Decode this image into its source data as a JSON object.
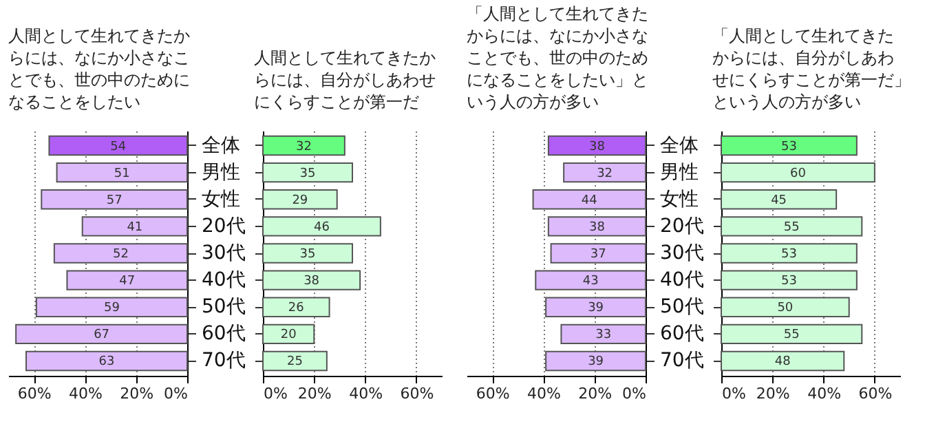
{
  "chart_data": [
    {
      "type": "bar",
      "orientation": "horizontal",
      "title": "人間として生れてきたからには、なにか小さなことでも、世の中のためになることをしたい",
      "categories": [
        "全体",
        "男性",
        "女性",
        "20代",
        "30代",
        "40代",
        "50代",
        "60代",
        "70代"
      ],
      "values": [
        54,
        51,
        57,
        41,
        52,
        47,
        59,
        67,
        63
      ],
      "colors": [
        "#b15ef7",
        "#dcbafc",
        "#dcbafc",
        "#dcbafc",
        "#dcbafc",
        "#dcbafc",
        "#dcbafc",
        "#dcbafc",
        "#dcbafc"
      ],
      "data_labels": true,
      "xlim": [
        70,
        0
      ],
      "xticks": [
        {
          "value": 60,
          "label": "60%"
        },
        {
          "value": 40,
          "label": "40%"
        },
        {
          "value": 20,
          "label": "20%"
        },
        {
          "value": 0,
          "label": "0%"
        }
      ],
      "grid": "x"
    },
    {
      "type": "bar",
      "orientation": "horizontal",
      "title": "人間として生れてきたからには、自分がしあわせにくらすことが第一だ",
      "categories": [
        "全体",
        "男性",
        "女性",
        "20代",
        "30代",
        "40代",
        "50代",
        "60代",
        "70代"
      ],
      "values": [
        32,
        35,
        29,
        46,
        35,
        38,
        26,
        20,
        25
      ],
      "colors": [
        "#66fc80",
        "#ccfcd8",
        "#ccfcd8",
        "#ccfcd8",
        "#ccfcd8",
        "#ccfcd8",
        "#ccfcd8",
        "#ccfcd8",
        "#ccfcd8"
      ],
      "data_labels": true,
      "xlim": [
        0,
        70
      ],
      "xticks": [
        {
          "value": 0,
          "label": "0%"
        },
        {
          "value": 20,
          "label": "20%"
        },
        {
          "value": 40,
          "label": "40%"
        },
        {
          "value": 60,
          "label": "60%"
        }
      ],
      "grid": "x",
      "tick_labels": "x"
    },
    {
      "type": "bar",
      "orientation": "horizontal",
      "title": "「人間として生れてきたからには、なにか小さなことでも、世の中のためになることをしたい」という人の方が多い",
      "categories": [
        "全体",
        "男性",
        "女性",
        "20代",
        "30代",
        "40代",
        "50代",
        "60代",
        "70代"
      ],
      "values": [
        38,
        32,
        44,
        38,
        37,
        43,
        39,
        33,
        39
      ],
      "colors": [
        "#b15ef7",
        "#dcbafc",
        "#dcbafc",
        "#dcbafc",
        "#dcbafc",
        "#dcbafc",
        "#dcbafc",
        "#dcbafc",
        "#dcbafc"
      ],
      "data_labels": true,
      "xlim": [
        70,
        0
      ],
      "xticks": [
        {
          "value": 60,
          "label": "60%"
        },
        {
          "value": 40,
          "label": "40%"
        },
        {
          "value": 20,
          "label": "20%"
        },
        {
          "value": 0,
          "label": "0%"
        }
      ],
      "grid": "x"
    },
    {
      "type": "bar",
      "orientation": "horizontal",
      "title": "「人間として生れてきたからには、自分がしあわせにくらすことが第一だ」という人の方が多い",
      "categories": [
        "全体",
        "男性",
        "女性",
        "20代",
        "30代",
        "40代",
        "50代",
        "60代",
        "70代"
      ],
      "values": [
        53,
        60,
        45,
        55,
        53,
        53,
        50,
        55,
        48
      ],
      "colors": [
        "#66fc80",
        "#ccfcd8",
        "#ccfcd8",
        "#ccfcd8",
        "#ccfcd8",
        "#ccfcd8",
        "#ccfcd8",
        "#ccfcd8",
        "#ccfcd8"
      ],
      "data_labels": true,
      "xlim": [
        0,
        70
      ],
      "xticks": [
        {
          "value": 0,
          "label": "0%"
        },
        {
          "value": 20,
          "label": "20%"
        },
        {
          "value": 40,
          "label": "40%"
        },
        {
          "value": 60,
          "label": "60%"
        }
      ],
      "grid": "x",
      "tick_labels": "x"
    }
  ]
}
